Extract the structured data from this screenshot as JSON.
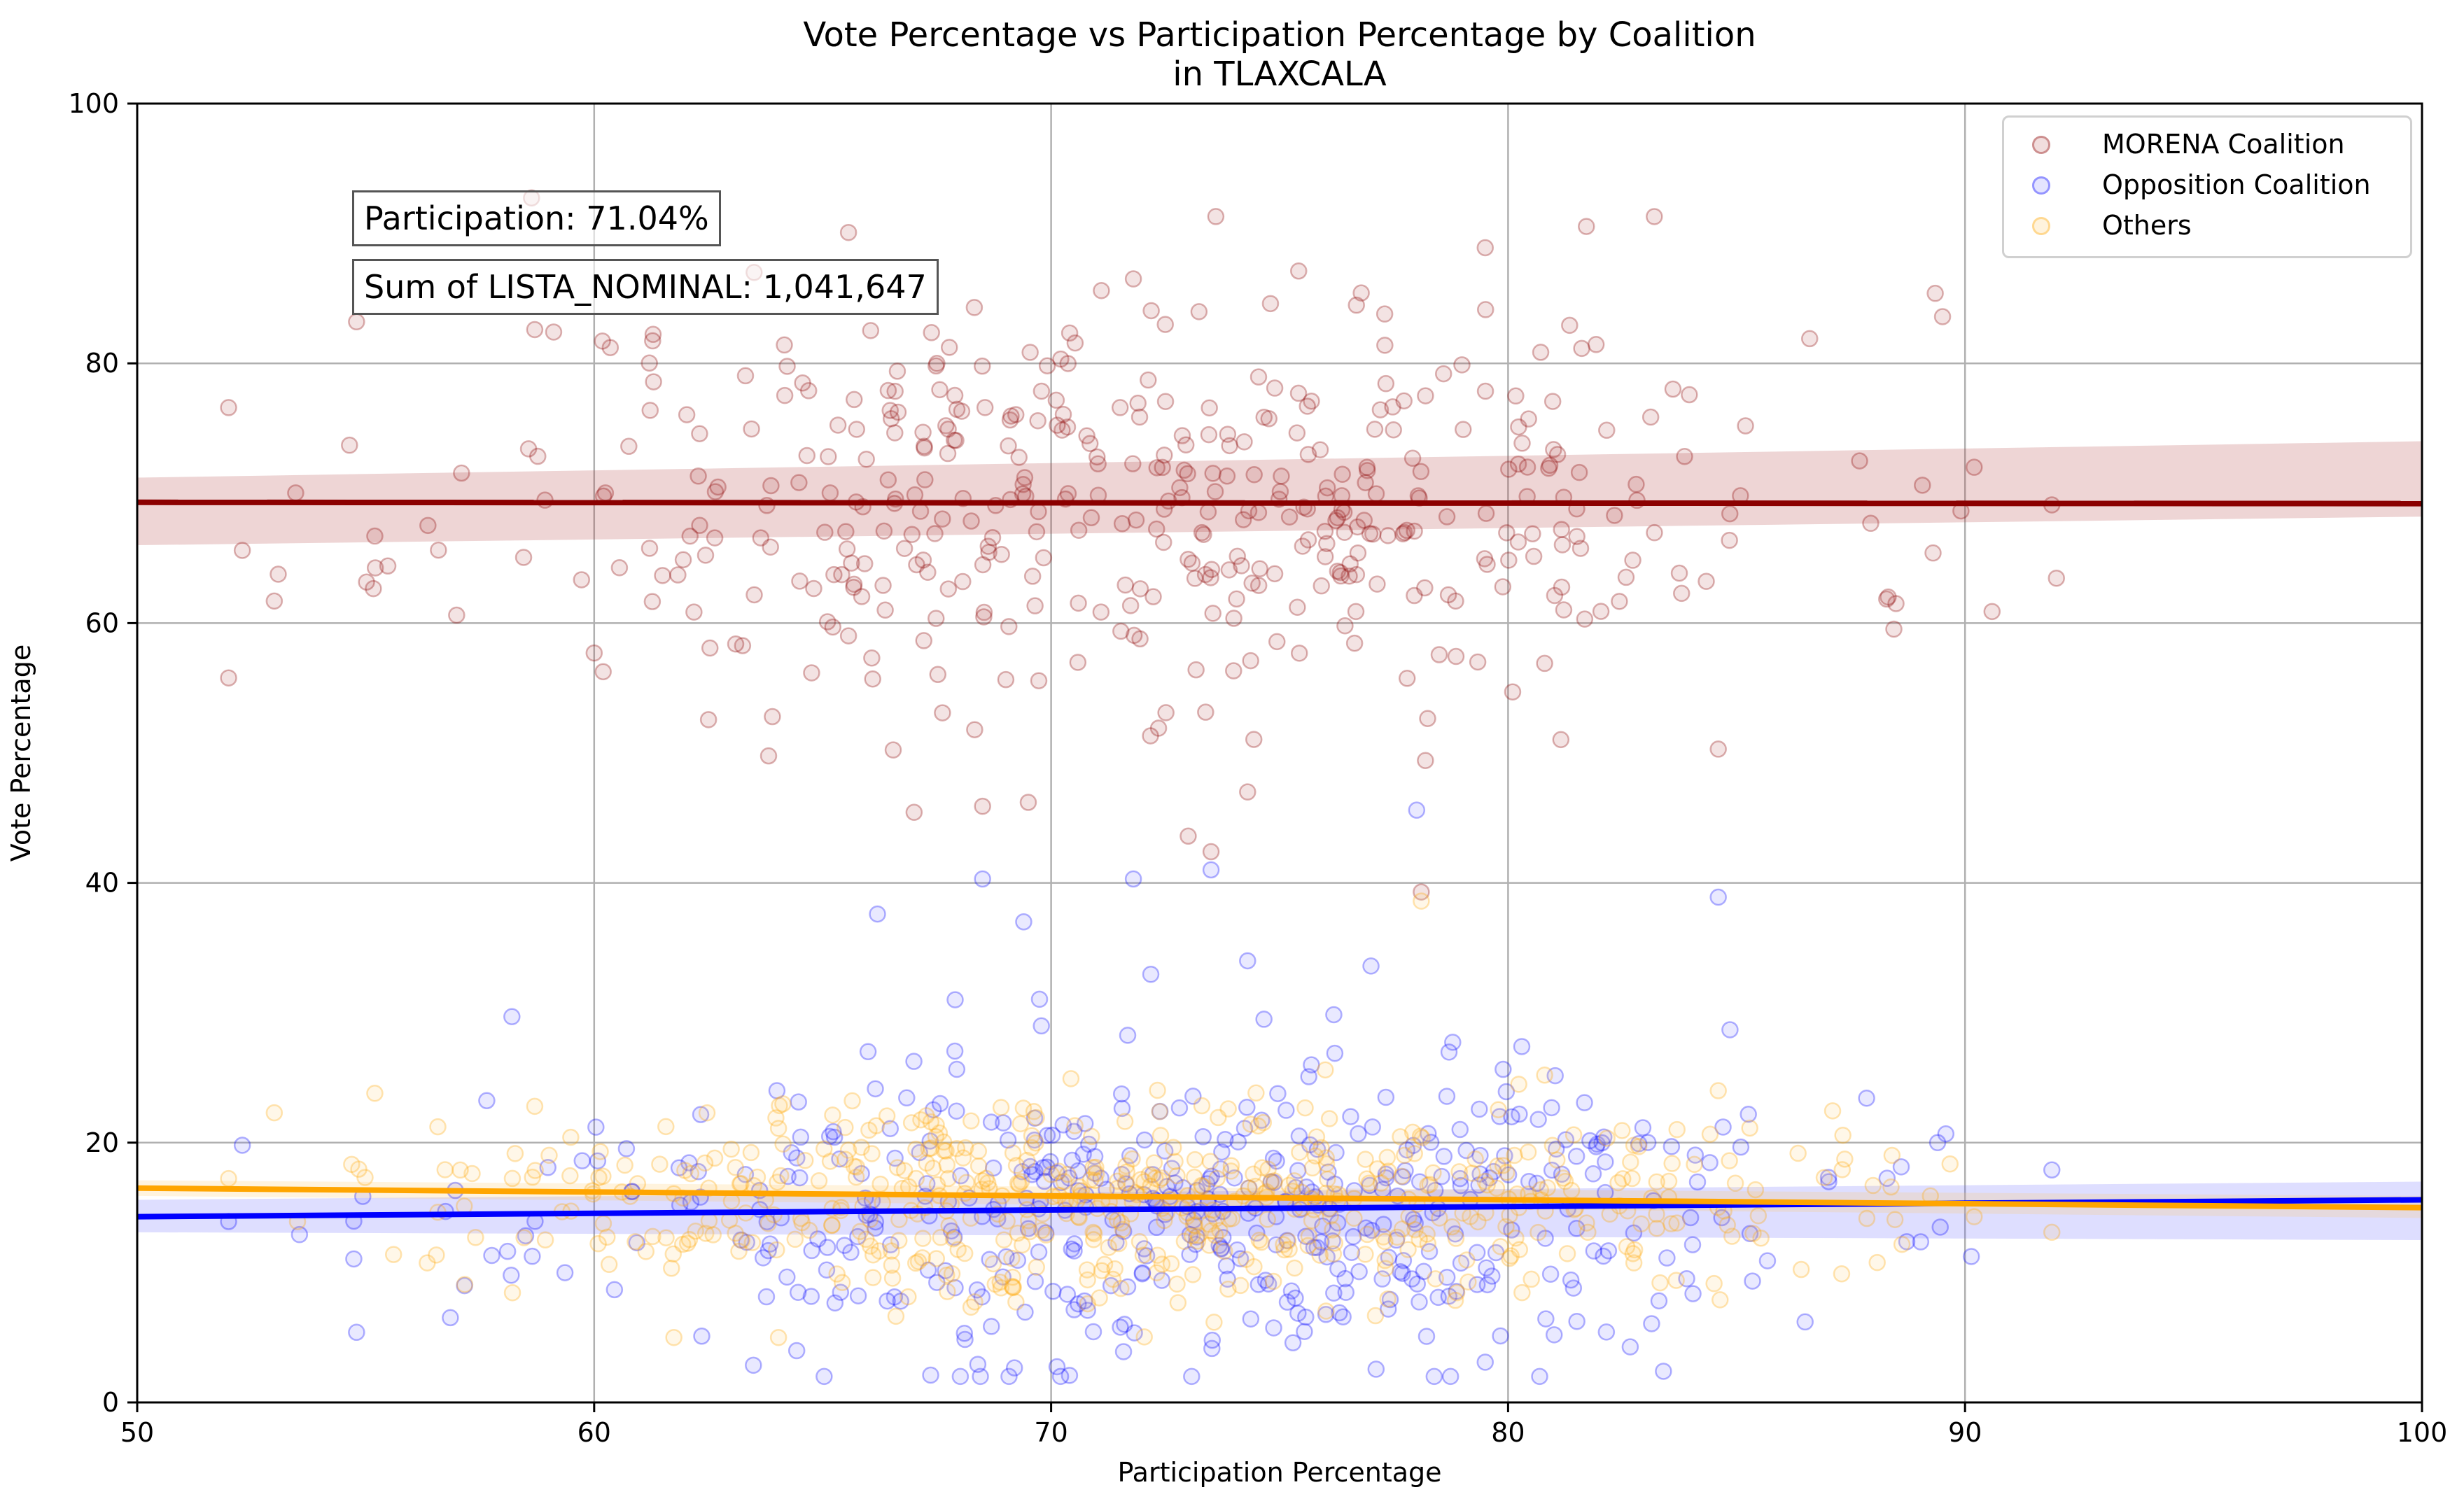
{
  "chart_data": {
    "type": "scatter",
    "title": "Vote Percentage vs Participation Percentage by Coalition",
    "subtitle": "in TLAXCALA",
    "xlabel": "Participation Percentage",
    "ylabel": "Vote Percentage",
    "xlim": [
      50,
      100
    ],
    "ylim": [
      0,
      100
    ],
    "xticks": [
      50,
      60,
      70,
      80,
      90,
      100
    ],
    "yticks": [
      0,
      20,
      40,
      60,
      80,
      100
    ],
    "grid": true,
    "legend_position": "top-right",
    "annotations": [
      "Participation: 71.04%",
      "Sum of LISTA_NOMINAL: 1,041,647"
    ],
    "series": [
      {
        "name": "MORENA Coalition",
        "color": "#8b0000",
        "fill_color": "#b04040",
        "trend": {
          "start": [
            50,
            69.3
          ],
          "end": [
            100,
            69.2
          ]
        },
        "band": {
          "upper_start": 71.2,
          "lower_start": 66.0,
          "upper_end": 74.0,
          "lower_end": 68.2
        },
        "cloud": {
          "count": 430,
          "x_mean": 72.0,
          "x_sd": 7.5,
          "y_mean": 69.5,
          "y_sd": 8.0,
          "y_min": 40,
          "y_max": 95,
          "seed": 11
        },
        "points": [
          [
            52.3,
            65.6
          ],
          [
            53.0,
            61.7
          ],
          [
            54.8,
            83.2
          ],
          [
            55.2,
            66.7
          ],
          [
            58.7,
            82.6
          ],
          [
            60.0,
            57.7
          ],
          [
            63.5,
            87.0
          ],
          [
            63.9,
            52.8
          ],
          [
            68.5,
            45.9
          ],
          [
            69.5,
            46.2
          ],
          [
            71.1,
            85.6
          ],
          [
            71.8,
            86.5
          ],
          [
            73.0,
            43.6
          ],
          [
            73.5,
            42.4
          ],
          [
            74.3,
            47.0
          ],
          [
            74.8,
            84.6
          ],
          [
            77.3,
            83.8
          ],
          [
            79.5,
            88.9
          ],
          [
            80.8,
            56.9
          ],
          [
            83.2,
            91.3
          ],
          [
            84.6,
            50.3
          ],
          [
            86.6,
            81.9
          ],
          [
            89.3,
            65.4
          ],
          [
            90.2,
            72.0
          ],
          [
            91.9,
            69.1
          ],
          [
            78.1,
            39.3
          ]
        ]
      },
      {
        "name": "Opposition Coalition",
        "color": "#0000ff",
        "fill_color": "#6a6aff",
        "trend": {
          "start": [
            50,
            14.3
          ],
          "end": [
            100,
            15.6
          ]
        },
        "band": {
          "upper_start": 15.6,
          "lower_start": 13.1,
          "upper_end": 17.0,
          "lower_end": 12.5
        },
        "cloud": {
          "count": 470,
          "x_mean": 72.5,
          "x_sd": 7.0,
          "y_mean": 14.5,
          "y_sd": 6.0,
          "y_min": 2,
          "y_max": 42,
          "seed": 23
        },
        "points": [
          [
            52.3,
            19.8
          ],
          [
            54.8,
            5.4
          ],
          [
            58.2,
            29.7
          ],
          [
            64.0,
            24.0
          ],
          [
            66.2,
            37.6
          ],
          [
            67.9,
            31.0
          ],
          [
            68.5,
            40.3
          ],
          [
            69.4,
            37.0
          ],
          [
            71.8,
            40.3
          ],
          [
            73.5,
            41.0
          ],
          [
            74.3,
            34.0
          ],
          [
            77.0,
            33.6
          ],
          [
            78.0,
            45.6
          ],
          [
            79.5,
            3.1
          ],
          [
            80.3,
            27.4
          ],
          [
            83.4,
            2.4
          ],
          [
            84.6,
            38.9
          ],
          [
            86.5,
            6.2
          ],
          [
            89.4,
            20.0
          ],
          [
            91.9,
            17.9
          ]
        ]
      },
      {
        "name": "Others",
        "color": "#ffa500",
        "fill_color": "#ffc862",
        "trend": {
          "start": [
            50,
            16.5
          ],
          "end": [
            100,
            15.0
          ]
        },
        "band": {
          "upper_start": 17.1,
          "lower_start": 15.9,
          "upper_end": 15.9,
          "lower_end": 14.2
        },
        "cloud": {
          "count": 560,
          "x_mean": 72.0,
          "x_sd": 7.2,
          "y_mean": 15.7,
          "y_sd": 3.8,
          "y_min": 5,
          "y_max": 27,
          "seed": 37
        },
        "points": [
          [
            53.0,
            22.3
          ],
          [
            55.2,
            23.8
          ],
          [
            58.7,
            22.8
          ],
          [
            63.0,
            19.5
          ],
          [
            76.0,
            25.6
          ],
          [
            78.1,
            38.6
          ],
          [
            80.8,
            25.2
          ],
          [
            84.6,
            24.0
          ],
          [
            87.3,
            9.9
          ],
          [
            90.2,
            14.3
          ],
          [
            91.9,
            13.1
          ]
        ]
      }
    ]
  }
}
